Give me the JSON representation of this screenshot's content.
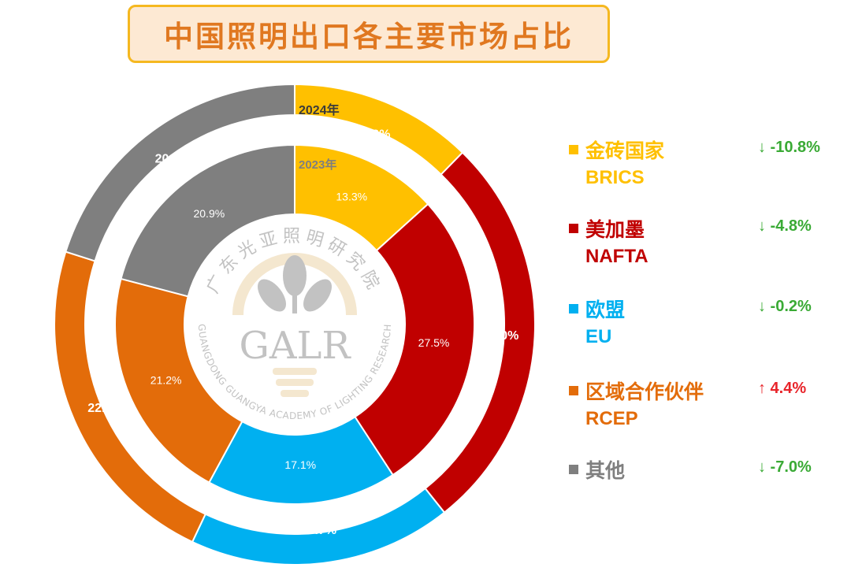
{
  "title": "中国照明出口各主要市场占比",
  "chart_data": {
    "type": "donut",
    "title": "中国照明出口各主要市场占比",
    "rings": [
      {
        "name": "2024年",
        "position": "outer",
        "values": [
          12.3,
          27.0,
          17.7,
          22.9,
          20.1
        ],
        "labels": [
          "12.3%",
          "27.0%",
          "17.7%",
          "22.9%",
          "20.1%"
        ]
      },
      {
        "name": "2023年",
        "position": "inner",
        "values": [
          13.3,
          27.5,
          17.1,
          21.2,
          20.9
        ],
        "labels": [
          "13.3%",
          "27.5%",
          "17.1%",
          "21.2%",
          "20.9%"
        ]
      }
    ],
    "categories": [
      {
        "cn": "金砖国家",
        "en": "BRICS",
        "color": "#ffc000",
        "change": "↓ -10.8%",
        "change_color": "#3aaa35"
      },
      {
        "cn": "美加墨",
        "en": "NAFTA",
        "color": "#c00000",
        "change": "↓ -4.8%",
        "change_color": "#3aaa35"
      },
      {
        "cn": "欧盟",
        "en": "EU",
        "color": "#00b0f0",
        "change": "↓ -0.2%",
        "change_color": "#3aaa35"
      },
      {
        "cn": "区域合作伙伴",
        "en": "RCEP",
        "color": "#e36c0a",
        "change": "↑ 4.4%",
        "change_color": "#e8242a"
      },
      {
        "cn": "其他",
        "en": "",
        "color": "#7f7f7f",
        "change": "↓ -7.0%",
        "change_color": "#3aaa35"
      }
    ],
    "legend_position": "right"
  },
  "watermark": {
    "logo_text": "GALR",
    "arc_text_top": "广东光亚照明研究院",
    "arc_text_bottom": "GUANGDONG GUANGYA ACADEMY OF LIGHTING RESEARCH"
  }
}
